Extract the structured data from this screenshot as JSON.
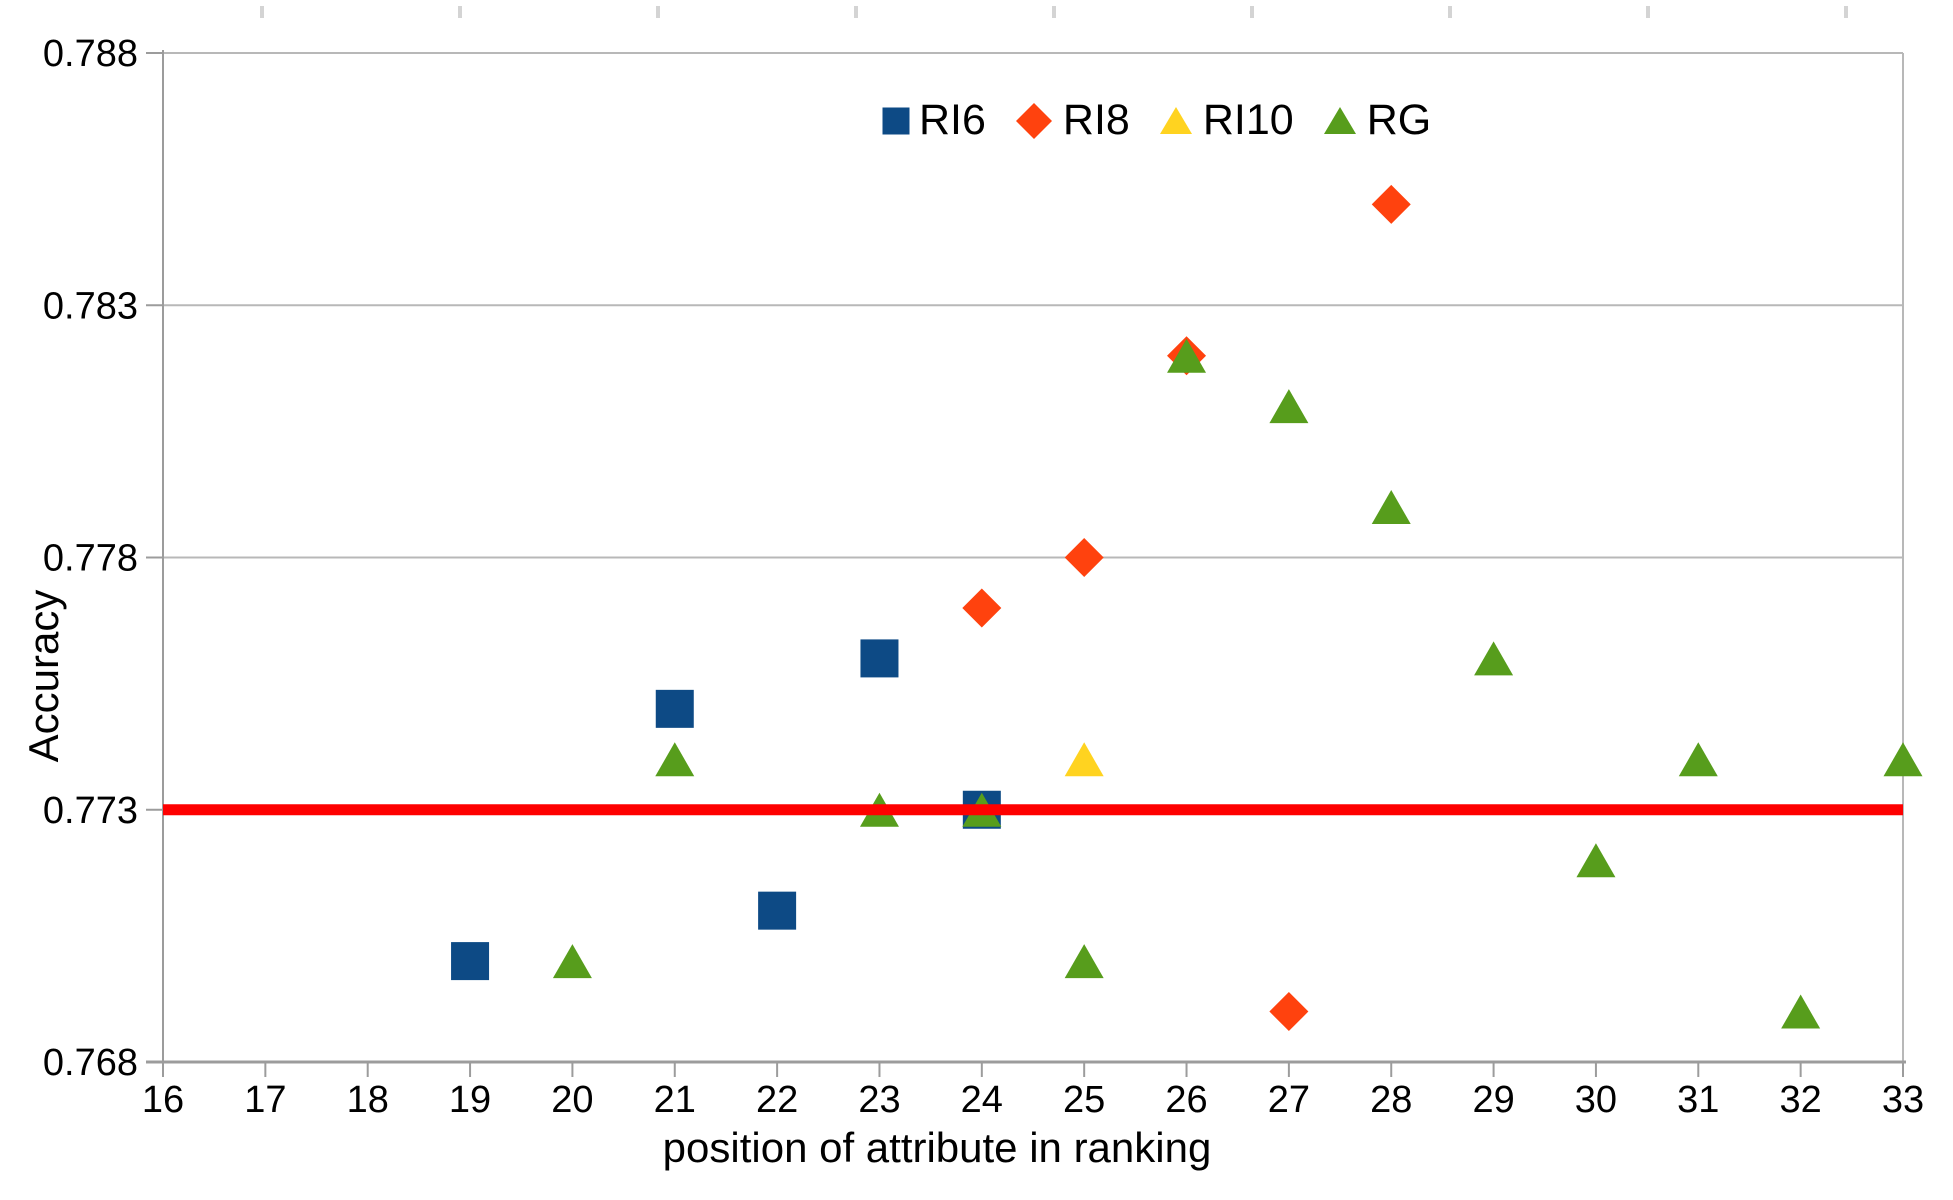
{
  "chart_data": {
    "type": "scatter",
    "title": "",
    "xlabel": "position of attribute in ranking",
    "ylabel": "Accuracy",
    "xlim": [
      16,
      33
    ],
    "ylim": [
      0.768,
      0.788
    ],
    "xticks": [
      16,
      17,
      18,
      19,
      20,
      21,
      22,
      23,
      24,
      25,
      26,
      27,
      28,
      29,
      30,
      31,
      32,
      33
    ],
    "ytick_values": [
      0.788,
      0.783,
      0.778,
      0.773,
      0.768
    ],
    "ytick_labels": [
      "0.788",
      "0.783",
      "0.778",
      "0.773",
      "0.768"
    ],
    "grid": "horizontal",
    "has_top_minor_ticks": true,
    "legend_position": "top-center-inside",
    "series": [
      {
        "name": "RI6",
        "marker": "square",
        "color": "#0d4a85",
        "points": [
          [
            19,
            0.77
          ],
          [
            21,
            0.775
          ],
          [
            22,
            0.771
          ],
          [
            23,
            0.776
          ],
          [
            24,
            0.773
          ]
        ]
      },
      {
        "name": "RI8",
        "marker": "diamond",
        "color": "#ff420e",
        "points": [
          [
            24,
            0.777
          ],
          [
            25,
            0.778
          ],
          [
            26,
            0.782
          ],
          [
            27,
            0.769
          ],
          [
            28,
            0.785
          ]
        ]
      },
      {
        "name": "RI10",
        "marker": "triangle",
        "color": "#ffd320",
        "points": [
          [
            25,
            0.774
          ]
        ]
      },
      {
        "name": "RG",
        "marker": "triangle",
        "color": "#579d1c",
        "points": [
          [
            20,
            0.77
          ],
          [
            21,
            0.774
          ],
          [
            23,
            0.773
          ],
          [
            24,
            0.773
          ],
          [
            25,
            0.77
          ],
          [
            26,
            0.782
          ],
          [
            27,
            0.781
          ],
          [
            28,
            0.779
          ],
          [
            29,
            0.776
          ],
          [
            30,
            0.772
          ],
          [
            31,
            0.774
          ],
          [
            32,
            0.769
          ],
          [
            33,
            0.774
          ]
        ]
      }
    ],
    "reference_line": {
      "y": 0.773,
      "color": "#fe0000"
    }
  },
  "colors": {
    "background": "#ffffff",
    "gridline": "#b8b8b8",
    "axis": "#9c9c9c",
    "top_tick": "#d4d4d4",
    "reference": "#fe0000"
  }
}
